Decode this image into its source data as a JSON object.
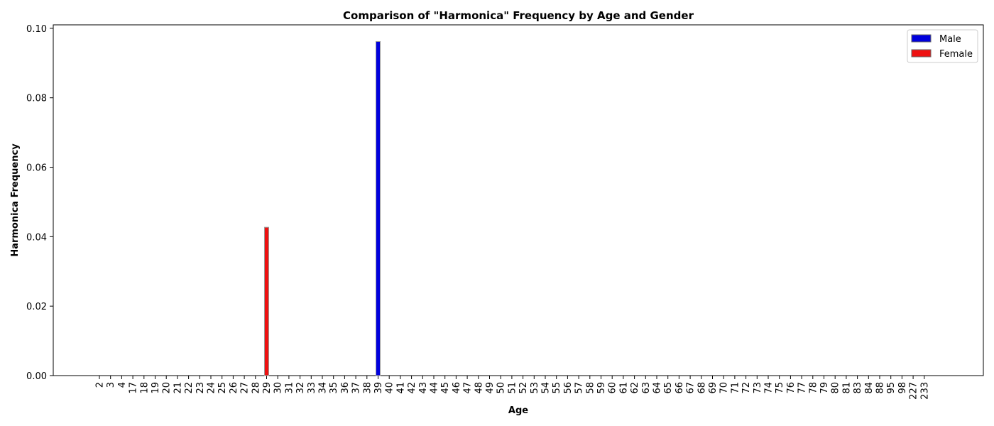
{
  "chart_data": {
    "type": "bar",
    "title": "Comparison of \"Harmonica\" Frequency by Age and Gender",
    "xlabel": "Age",
    "ylabel": "Harmonica Frequency",
    "ylim": [
      0,
      0.101
    ],
    "yticks": [
      "0.00",
      "0.02",
      "0.04",
      "0.06",
      "0.08",
      "0.10"
    ],
    "ytick_values": [
      0,
      0.02,
      0.04,
      0.06,
      0.08,
      0.1
    ],
    "categories": [
      "2",
      "3",
      "4",
      "17",
      "18",
      "19",
      "20",
      "21",
      "22",
      "23",
      "24",
      "25",
      "26",
      "27",
      "28",
      "29",
      "30",
      "31",
      "32",
      "33",
      "34",
      "35",
      "36",
      "37",
      "38",
      "39",
      "40",
      "41",
      "42",
      "43",
      "44",
      "45",
      "46",
      "47",
      "48",
      "49",
      "50",
      "51",
      "52",
      "53",
      "54",
      "55",
      "56",
      "57",
      "58",
      "59",
      "60",
      "61",
      "62",
      "63",
      "64",
      "65",
      "66",
      "67",
      "68",
      "69",
      "70",
      "71",
      "72",
      "73",
      "74",
      "75",
      "76",
      "77",
      "78",
      "79",
      "80",
      "81",
      "83",
      "84",
      "88",
      "95",
      "98",
      "227",
      "233"
    ],
    "series": [
      {
        "name": "Male",
        "color": "#0000dd",
        "points": [
          {
            "category": "39",
            "value": 0.0962
          }
        ]
      },
      {
        "name": "Female",
        "color": "#ee1111",
        "points": [
          {
            "category": "29",
            "value": 0.0427
          }
        ]
      }
    ],
    "legend_position": "top-right",
    "grid": false
  }
}
